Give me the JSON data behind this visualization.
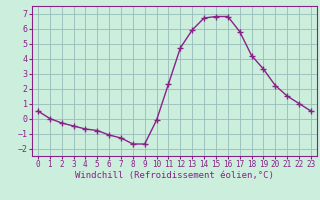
{
  "x": [
    0,
    1,
    2,
    3,
    4,
    5,
    6,
    7,
    8,
    9,
    10,
    11,
    12,
    13,
    14,
    15,
    16,
    17,
    18,
    19,
    20,
    21,
    22,
    23
  ],
  "y": [
    0.5,
    0.0,
    -0.3,
    -0.5,
    -0.7,
    -0.8,
    -1.1,
    -1.3,
    -1.7,
    -1.7,
    -0.1,
    2.3,
    4.7,
    5.9,
    6.7,
    6.8,
    6.8,
    5.8,
    4.2,
    3.3,
    2.2,
    1.5,
    1.0,
    0.5
  ],
  "line_color": "#882288",
  "marker": "+",
  "marker_size": 4,
  "linewidth": 1.0,
  "bg_color": "#cceedd",
  "grid_color": "#99bbbb",
  "xlabel": "Windchill (Refroidissement éolien,°C)",
  "xlim": [
    -0.5,
    23.5
  ],
  "ylim": [
    -2.5,
    7.5
  ],
  "yticks": [
    -2,
    -1,
    0,
    1,
    2,
    3,
    4,
    5,
    6,
    7
  ],
  "xticks": [
    0,
    1,
    2,
    3,
    4,
    5,
    6,
    7,
    8,
    9,
    10,
    11,
    12,
    13,
    14,
    15,
    16,
    17,
    18,
    19,
    20,
    21,
    22,
    23
  ],
  "tick_labelsize": 5.5,
  "xlabel_fontsize": 6.5,
  "axis_color": "#882288"
}
